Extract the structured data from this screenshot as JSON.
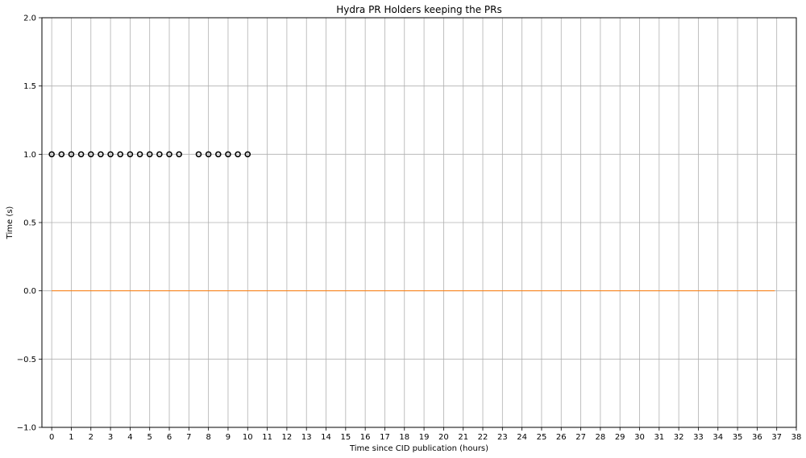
{
  "chart_data": {
    "type": "scatter",
    "title": "Hydra PR Holders keeping the PRs",
    "xlabel": "Time since CID publication (hours)",
    "ylabel": "Time (s)",
    "xlim": [
      -0.5,
      38
    ],
    "ylim": [
      -1.0,
      2.0
    ],
    "xticks": [
      0,
      1,
      2,
      3,
      4,
      5,
      6,
      7,
      8,
      9,
      10,
      11,
      12,
      13,
      14,
      15,
      16,
      17,
      18,
      19,
      20,
      21,
      22,
      23,
      24,
      25,
      26,
      27,
      28,
      29,
      30,
      31,
      32,
      33,
      34,
      35,
      36,
      37,
      38
    ],
    "yticks": [
      -1.0,
      -0.5,
      0.0,
      0.5,
      1.0,
      1.5,
      2.0
    ],
    "ytick_labels": [
      "−1.0",
      "−0.5",
      "0.0",
      "0.5",
      "1.0",
      "1.5",
      "2.0"
    ],
    "grid": true,
    "series": [
      {
        "type": "scatter",
        "marker": "circle-open",
        "color": "#000000",
        "x": [
          0,
          0.5,
          1,
          1.5,
          2,
          2.5,
          3,
          3.5,
          4,
          4.5,
          5,
          5.5,
          6,
          6.5,
          7.5,
          8,
          8.5,
          9,
          9.5,
          10
        ],
        "y": [
          1,
          1,
          1,
          1,
          1,
          1,
          1,
          1,
          1,
          1,
          1,
          1,
          1,
          1,
          1,
          1,
          1,
          1,
          1,
          1
        ]
      },
      {
        "type": "line",
        "color": "#ff7f0e",
        "x": [
          0,
          36.9
        ],
        "y": [
          0,
          0
        ]
      }
    ]
  }
}
